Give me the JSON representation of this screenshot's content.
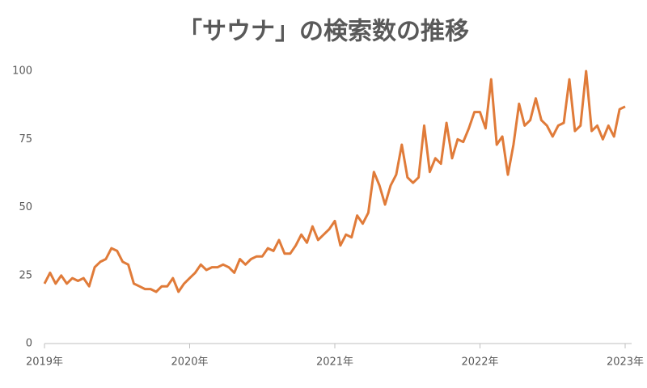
{
  "chart_data": {
    "type": "line",
    "title": "「サウナ」の検索数の推移",
    "categories": [
      "2019年",
      null,
      null,
      null,
      null,
      null,
      null,
      null,
      null,
      null,
      null,
      null,
      null,
      null,
      null,
      null,
      null,
      null,
      null,
      null,
      null,
      null,
      null,
      null,
      null,
      null,
      "2020年",
      null,
      null,
      null,
      null,
      null,
      null,
      null,
      null,
      null,
      null,
      null,
      null,
      null,
      null,
      null,
      null,
      null,
      null,
      null,
      null,
      null,
      null,
      null,
      null,
      null,
      "2021年",
      null,
      null,
      null,
      null,
      null,
      null,
      null,
      null,
      null,
      null,
      null,
      null,
      null,
      null,
      null,
      null,
      null,
      null,
      null,
      null,
      null,
      null,
      null,
      null,
      null,
      "2022年",
      null,
      null,
      null,
      null,
      null,
      null,
      null,
      null,
      null,
      null,
      null,
      null,
      null,
      null,
      null,
      null,
      null,
      null,
      null,
      null,
      null,
      null,
      null,
      null,
      null,
      "2023年"
    ],
    "series": [
      {
        "name": "サウナ",
        "color": "#e07b39",
        "values": [
          22,
          26,
          22,
          25,
          22,
          24,
          23,
          24,
          21,
          28,
          30,
          31,
          35,
          34,
          30,
          29,
          22,
          21,
          20,
          20,
          19,
          21,
          21,
          24,
          19,
          22,
          24,
          26,
          29,
          27,
          28,
          28,
          29,
          28,
          26,
          31,
          29,
          31,
          32,
          32,
          35,
          34,
          38,
          33,
          33,
          36,
          40,
          37,
          43,
          38,
          40,
          42,
          45,
          36,
          40,
          39,
          47,
          44,
          48,
          63,
          58,
          51,
          58,
          62,
          73,
          61,
          59,
          61,
          80,
          63,
          68,
          66,
          81,
          68,
          75,
          74,
          79,
          85,
          85,
          79,
          97,
          73,
          76,
          62,
          73,
          88,
          80,
          82,
          90,
          82,
          80,
          76,
          80,
          81,
          97,
          78,
          80,
          100,
          78,
          80,
          75,
          80,
          76,
          86,
          87
        ]
      }
    ],
    "ylim": [
      0,
      100
    ],
    "yticks": [
      0,
      25,
      50,
      75,
      100
    ]
  }
}
